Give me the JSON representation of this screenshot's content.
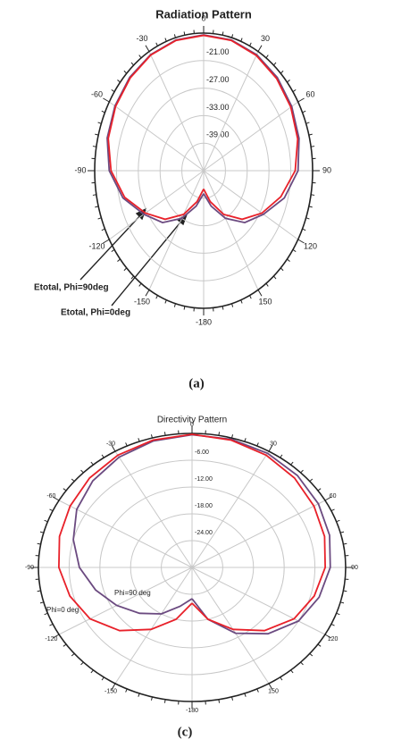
{
  "chart_data": [
    {
      "type": "polar",
      "title": "Radiation Pattern",
      "caption": "(a)",
      "theta": [
        -180,
        -165,
        -150,
        -135,
        -120,
        -105,
        -90,
        -75,
        -60,
        -45,
        -30,
        -15,
        0,
        15,
        30,
        45,
        60,
        75,
        90,
        105,
        120,
        135,
        150,
        165,
        180
      ],
      "rlim": [
        -45,
        -15
      ],
      "rticks": [
        {
          "value": -21,
          "label": "-21.00"
        },
        {
          "value": -27,
          "label": "-27.00"
        },
        {
          "value": -33,
          "label": "-33.00"
        },
        {
          "value": -39,
          "label": "-39.00"
        }
      ],
      "thetaticks": [
        0,
        30,
        60,
        90,
        120,
        150,
        -180,
        -150,
        -120,
        -90,
        -60,
        -30
      ],
      "series": [
        {
          "name": "Etotal, Phi=90deg",
          "color": "#6b4a80",
          "values": [
            -40,
            -37,
            -33,
            -29,
            -26,
            -22,
            -19,
            -17.5,
            -16.8,
            -16.2,
            -15.8,
            -15.5,
            -15.4,
            -15.5,
            -15.8,
            -16.3,
            -17,
            -17.8,
            -19,
            -22,
            -26,
            -29,
            -33,
            -37,
            -40
          ]
        },
        {
          "name": "Etotal, Phi=0deg",
          "color": "#e8212a",
          "values": [
            -41,
            -38,
            -34,
            -30,
            -26.5,
            -22.5,
            -19.5,
            -17.8,
            -17,
            -16.4,
            -15.9,
            -15.6,
            -15.5,
            -15.6,
            -16,
            -16.6,
            -17.3,
            -18.2,
            -19.8,
            -23,
            -26.5,
            -30,
            -34,
            -38,
            -41
          ]
        }
      ]
    },
    {
      "type": "polar",
      "title": "Directivity Pattern",
      "caption": "(c)",
      "theta": [
        -180,
        -165,
        -150,
        -135,
        -120,
        -105,
        -90,
        -75,
        -60,
        -45,
        -30,
        -15,
        0,
        15,
        30,
        45,
        60,
        75,
        90,
        105,
        120,
        135,
        150,
        165,
        180
      ],
      "rlim": [
        -30,
        0
      ],
      "rticks": [
        {
          "value": -6,
          "label": "-6.00"
        },
        {
          "value": -12,
          "label": "-12.00"
        },
        {
          "value": -18,
          "label": "-18.00"
        },
        {
          "value": -24,
          "label": "-24.00"
        }
      ],
      "thetaticks": [
        0,
        30,
        60,
        90,
        120,
        150,
        -180,
        -150,
        -120,
        -90,
        -60,
        -30
      ],
      "series": [
        {
          "name": "Phi=90 deg",
          "color": "#6b4a80",
          "values": [
            -23,
            -21,
            -18,
            -15.5,
            -13,
            -10.5,
            -8,
            -6,
            -4,
            -2.6,
            -1.5,
            -0.7,
            -0.3,
            -0.3,
            -0.5,
            -0.9,
            -1.5,
            -2.2,
            -3,
            -4.3,
            -6,
            -9,
            -13,
            -18,
            -23
          ]
        },
        {
          "name": "Phi=0 deg",
          "color": "#e8212a",
          "values": [
            -22,
            -18,
            -14,
            -10,
            -7,
            -5.3,
            -4,
            -3.2,
            -2.5,
            -1.7,
            -1,
            -0.5,
            -0.2,
            -0.5,
            -1,
            -1.7,
            -2.5,
            -3.2,
            -4,
            -5.3,
            -7,
            -10,
            -14,
            -18,
            -22
          ]
        }
      ]
    }
  ]
}
